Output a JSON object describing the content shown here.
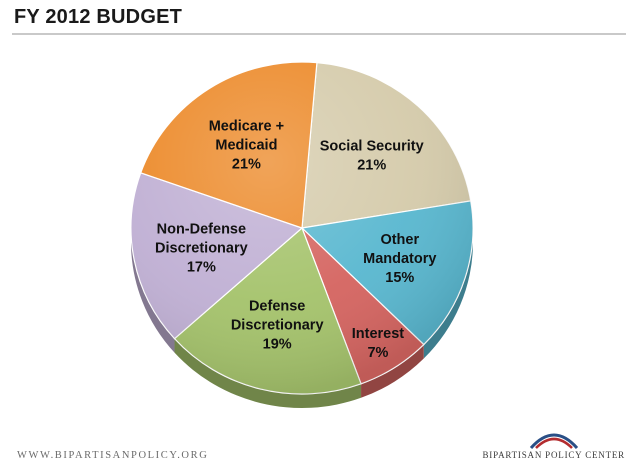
{
  "header": {
    "title": "FY 2012 BUDGET"
  },
  "footer": {
    "url": "WWW.BIPARTISANPOLICY.ORG",
    "organization": "BIPARTISAN POLICY CENTER"
  },
  "colors": {
    "medicare_medicaid": "#ec8a2a",
    "social_security": "#d5cbab",
    "other_mandatory": "#5ab8d0",
    "interest": "#d56561",
    "defense_discretionary": "#a5c36c",
    "non_defense_discretionary": "#c0b0d4",
    "logo_red": "#b32c2f",
    "logo_blue": "#2a4f86"
  },
  "chart_data": {
    "type": "pie",
    "title": "FY 2012 BUDGET",
    "unit": "%",
    "slices": [
      {
        "label": "Social Security",
        "label_lines": [
          "Social Security",
          "21%"
        ],
        "value": 21,
        "color": "#d5cbab"
      },
      {
        "label": "Other Mandatory",
        "label_lines": [
          "Other",
          "Mandatory",
          "15%"
        ],
        "value": 15,
        "color": "#5ab8d0"
      },
      {
        "label": "Interest",
        "label_lines": [
          "Interest",
          "7%"
        ],
        "value": 7,
        "color": "#d56561"
      },
      {
        "label": "Defense Discretionary",
        "label_lines": [
          "Defense",
          "Discretionary",
          "19%"
        ],
        "value": 19,
        "color": "#a5c36c"
      },
      {
        "label": "Non-Defense Discretionary",
        "label_lines": [
          "Non-Defense",
          "Discretionary",
          "17%"
        ],
        "value": 17,
        "color": "#c0b0d4"
      },
      {
        "label": "Medicare + Medicaid",
        "label_lines": [
          "Medicare +",
          "Medicaid",
          "21%"
        ],
        "value": 21,
        "color": "#ec8a2a"
      }
    ]
  }
}
